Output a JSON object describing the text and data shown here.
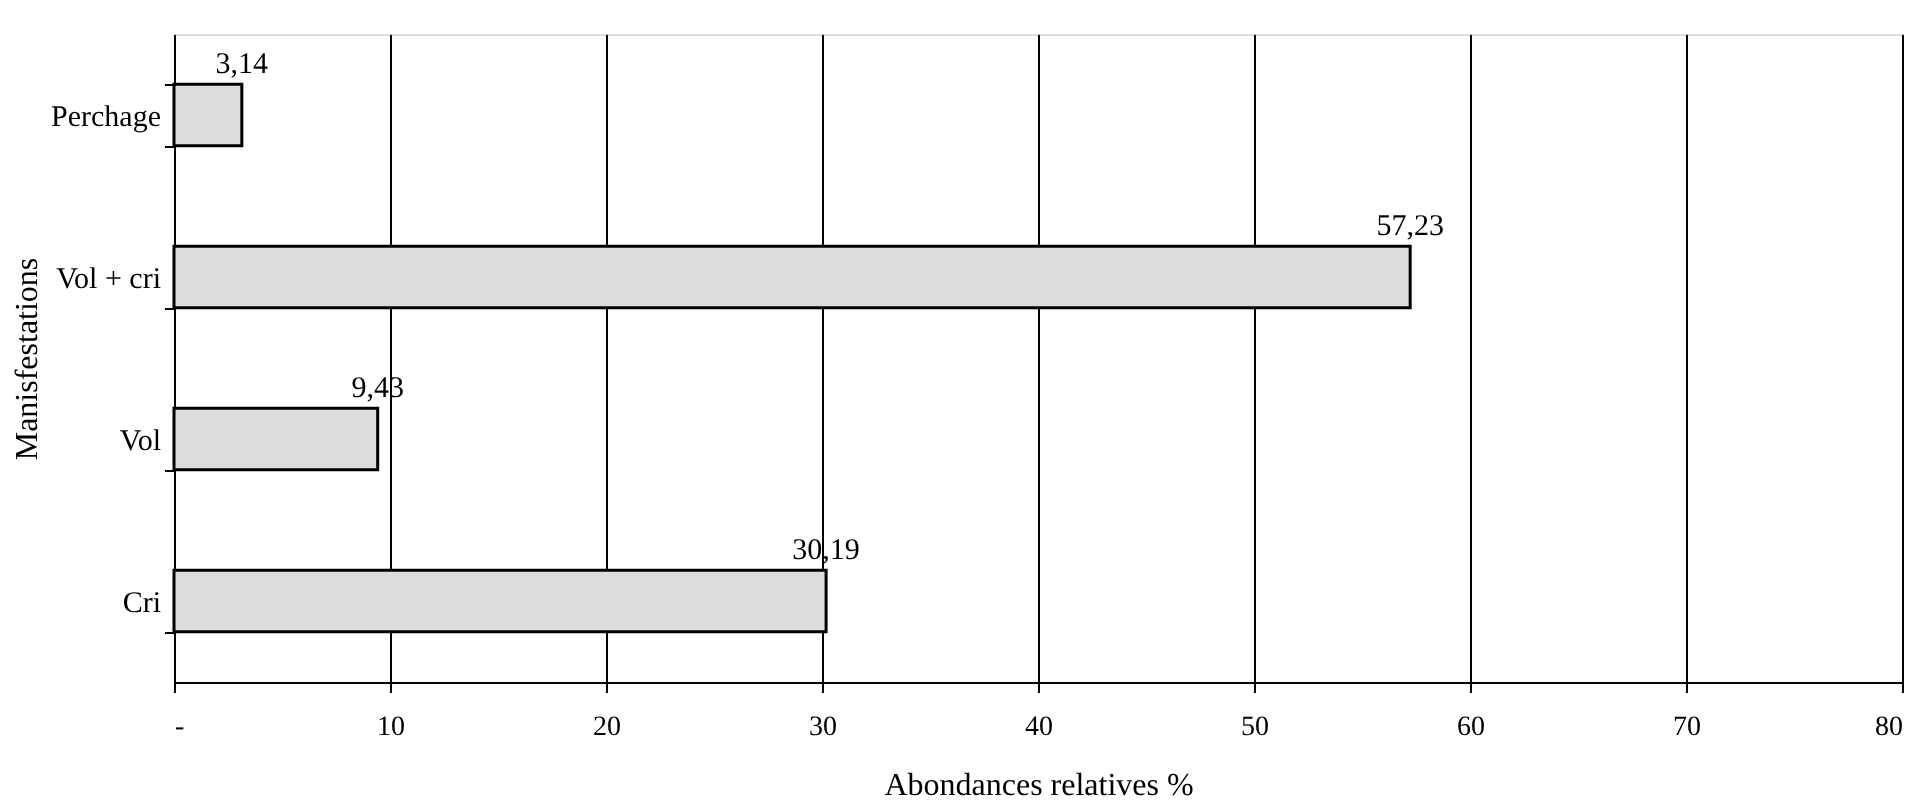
{
  "chart_data": {
    "type": "bar",
    "orientation": "horizontal",
    "categories": [
      "Perchage",
      "Vol + cri",
      "Vol",
      "Cri"
    ],
    "values": [
      3.14,
      57.23,
      9.43,
      30.19
    ],
    "value_labels": [
      "3,14",
      "57,23",
      "9,43",
      "30,19"
    ],
    "color": "#dcdcdc",
    "xlabel": "Abondances relatives %",
    "ylabel": "Manisfestations",
    "xlim": [
      0,
      80
    ],
    "xticks": [
      {
        "value": 0,
        "label": "-"
      },
      10,
      20,
      30,
      40,
      50,
      60,
      70,
      80
    ],
    "grid": "x"
  }
}
